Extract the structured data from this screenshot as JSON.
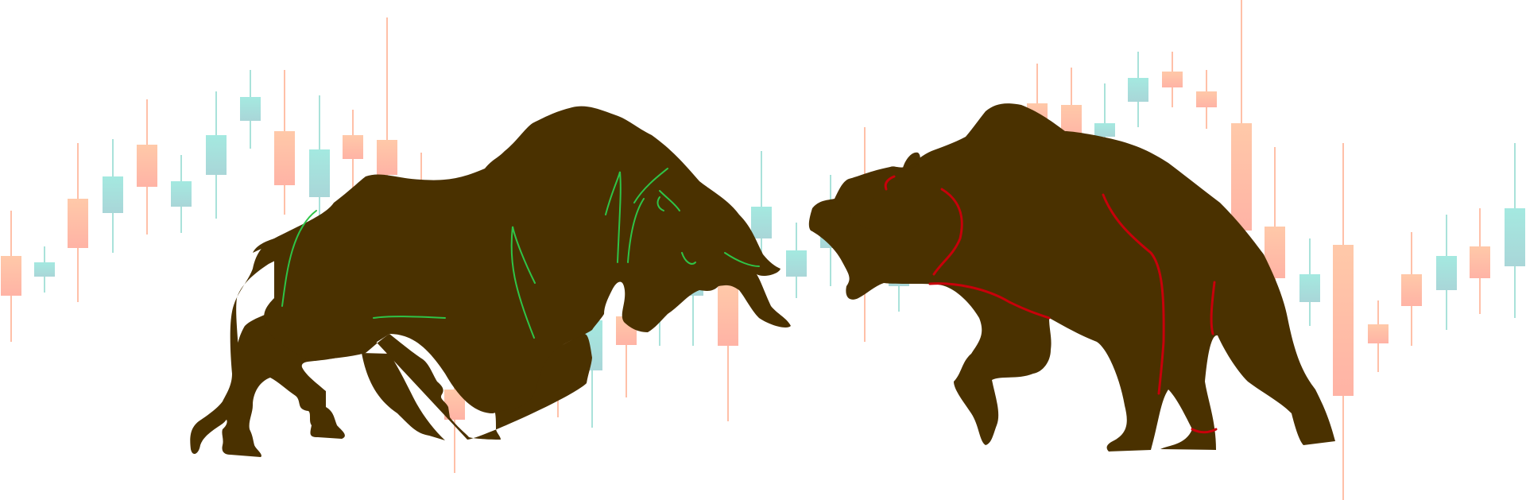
{
  "scene": {
    "description_icons": [
      "bull-silhouette",
      "bear-silhouette",
      "candlestick-pattern"
    ],
    "colors": {
      "background": "#ffffff",
      "animal_fill": "#4a3100",
      "bull_accent": "#2fc447",
      "bear_accent": "#c8000a",
      "candle_teal": "#9fdfd6",
      "candle_teal_light": "#b5ece4",
      "candle_salmon": "#ffb59c",
      "candle_salmon_light": "#ffcfb0"
    }
  }
}
